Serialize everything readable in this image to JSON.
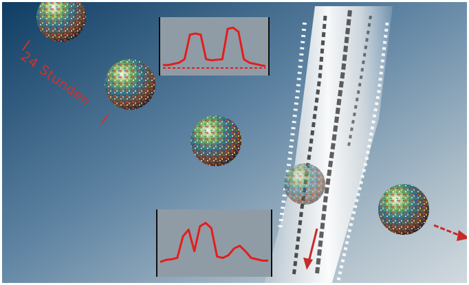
{
  "caption": {
    "label": "24 Stunden",
    "color": "#d0312d"
  },
  "scene": {
    "background_top": "#123456",
    "background_bottom": "#c9d3d8",
    "globe_icon": "earth-globe-icon",
    "arrow_color": "#d0312d",
    "trace_color": "#e41c1c"
  },
  "insets": [
    {
      "name": "upper-light-curve",
      "curve": [
        0.82,
        0.82,
        0.8,
        0.78,
        0.72,
        0.3,
        0.28,
        0.3,
        0.72,
        0.74,
        0.73,
        0.72,
        0.2,
        0.18,
        0.25,
        0.72,
        0.78,
        0.8,
        0.82,
        0.84
      ],
      "dashed_baseline": true
    },
    {
      "name": "lower-light-curve",
      "curve": [
        0.78,
        0.75,
        0.74,
        0.72,
        0.4,
        0.3,
        0.62,
        0.25,
        0.2,
        0.28,
        0.7,
        0.72,
        0.68,
        0.58,
        0.54,
        0.62,
        0.72,
        0.74,
        0.76,
        0.76
      ],
      "dashed_baseline": false
    }
  ]
}
